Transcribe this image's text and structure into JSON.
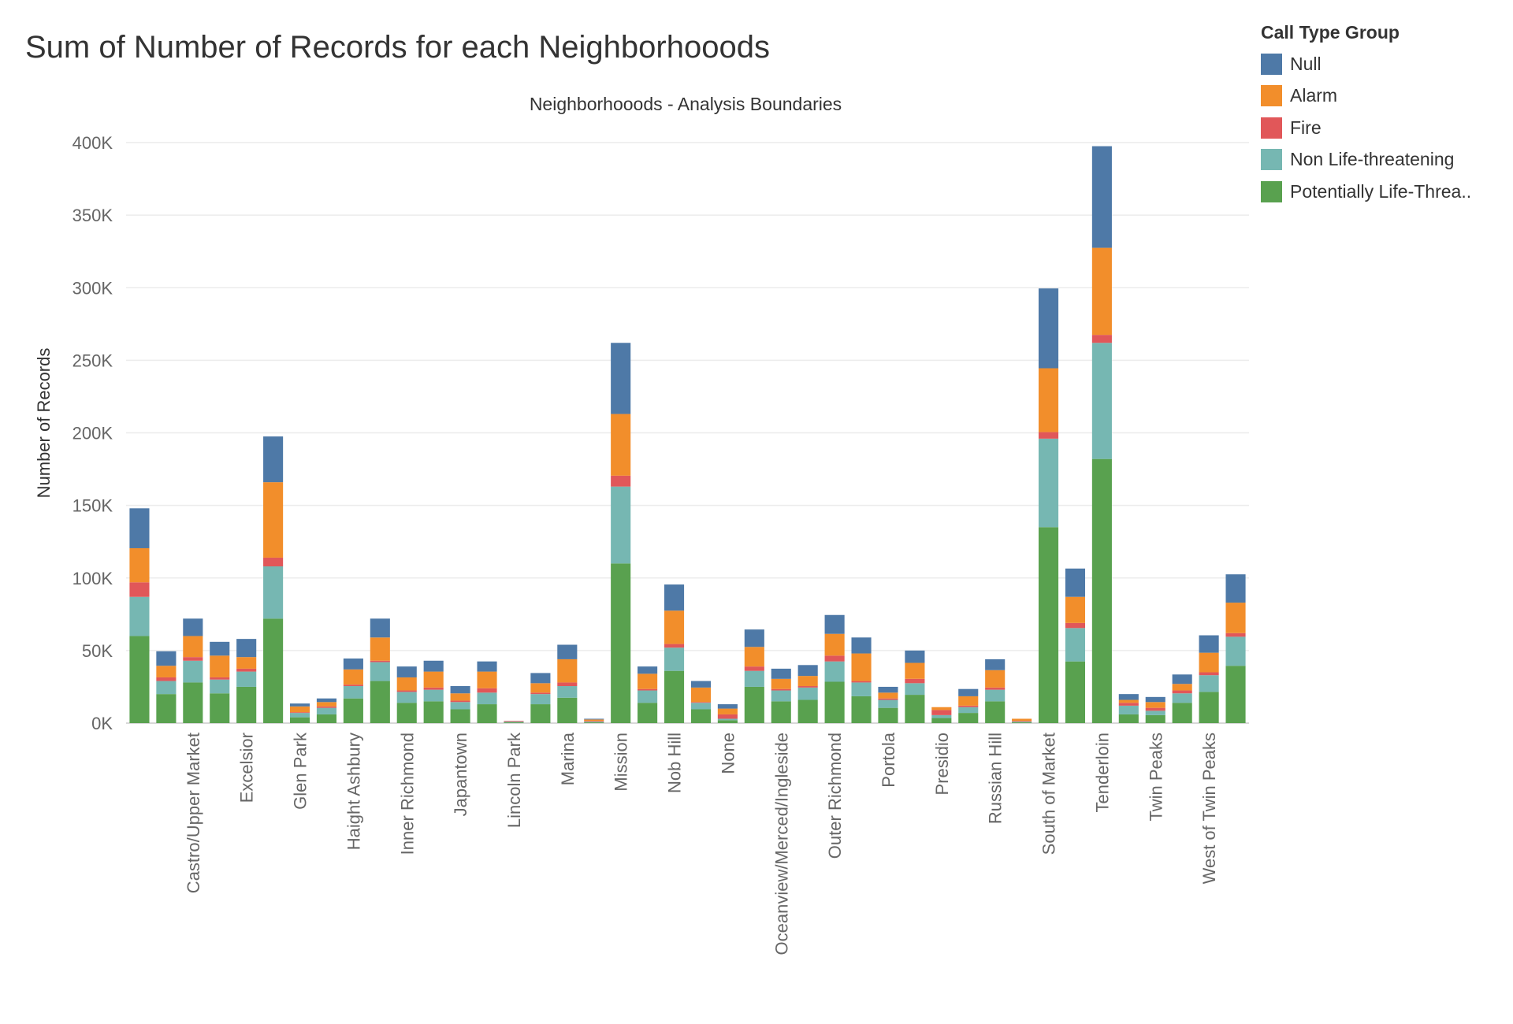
{
  "title": "Sum of Number of Records for each Neighborhooods",
  "legend": {
    "title": "Call Type Group",
    "items": [
      {
        "label": "Null",
        "color": "#4e79a7"
      },
      {
        "label": "Alarm",
        "color": "#f28e2b"
      },
      {
        "label": "Fire",
        "color": "#e15759"
      },
      {
        "label": "Non Life-threatening",
        "color": "#76b7b2"
      },
      {
        "label": "Potentially Life-Threa..",
        "color": "#59a14f"
      }
    ]
  },
  "chart_data": {
    "type": "bar",
    "stacked": true,
    "title": "Neighborhooods - Analysis Boundaries",
    "ylabel": "Number of Records",
    "ylim": [
      0,
      400000
    ],
    "yticks": [
      0,
      50000,
      100000,
      150000,
      200000,
      250000,
      300000,
      350000,
      400000
    ],
    "ytick_labels": [
      "0K",
      "50K",
      "100K",
      "150K",
      "200K",
      "250K",
      "300K",
      "350K",
      "400K"
    ],
    "grid": true,
    "legend_position": "top-right",
    "categories": [
      "",
      "",
      "Castro/Upper Market",
      "",
      "Excelsior",
      "",
      "Glen Park",
      "",
      "Haight Ashbury",
      "",
      "Inner Richmond",
      "",
      "Japantown",
      "",
      "Lincoln Park",
      "",
      "Marina",
      "",
      "Mission",
      "",
      "Nob Hill",
      "",
      "None",
      "",
      "Oceanview/Merced/Ingleside",
      "",
      "Outer Richmond",
      "",
      "Portola",
      "",
      "Presidio",
      "",
      "Russian Hill",
      "",
      "South of Market",
      "",
      "Tenderloin",
      "",
      "Twin Peaks",
      "",
      "West of Twin Peaks",
      ""
    ],
    "series": [
      {
        "name": "Potentially Life-Threa..",
        "color": "#59a14f",
        "values": [
          60000,
          20000,
          28000,
          20500,
          25000,
          72000,
          4000,
          6000,
          17000,
          29000,
          14000,
          15000,
          9500,
          13000,
          500,
          13000,
          17500,
          500,
          110000,
          14000,
          36000,
          9500,
          2000,
          25000,
          15000,
          16000,
          28500,
          18500,
          10500,
          19500,
          3500,
          7000,
          15000,
          500,
          135000,
          42500,
          182000,
          6000,
          5500,
          14000,
          21500,
          39500
        ]
      },
      {
        "name": "Non Life-threatening",
        "color": "#76b7b2",
        "values": [
          27000,
          9000,
          15000,
          9500,
          10500,
          36000,
          3000,
          4500,
          8500,
          13000,
          7500,
          8000,
          5000,
          8000,
          500,
          7000,
          8000,
          500,
          53000,
          8500,
          16000,
          4500,
          1000,
          11000,
          7500,
          8500,
          14000,
          9500,
          5500,
          8000,
          2000,
          4000,
          8000,
          500,
          61000,
          23000,
          80000,
          6000,
          3000,
          6500,
          11500,
          20000
        ]
      },
      {
        "name": "Fire",
        "color": "#e15759",
        "values": [
          10000,
          2500,
          2500,
          1500,
          2000,
          6000,
          500,
          1000,
          1000,
          1000,
          1000,
          1500,
          1000,
          3000,
          500,
          1000,
          2500,
          500,
          7500,
          1000,
          2500,
          500,
          3000,
          3000,
          1000,
          1000,
          4000,
          1000,
          1000,
          3000,
          3500,
          1000,
          1500,
          500,
          4500,
          3500,
          5500,
          2000,
          2000,
          2000,
          2000,
          2500
        ]
      },
      {
        "name": "Alarm",
        "color": "#f28e2b",
        "values": [
          23500,
          8000,
          14500,
          15000,
          8000,
          52000,
          4000,
          3000,
          10500,
          16000,
          9000,
          11000,
          5000,
          11500,
          0,
          6500,
          16000,
          1000,
          42500,
          10500,
          23000,
          10000,
          4000,
          13500,
          7000,
          7000,
          15000,
          19000,
          4000,
          11000,
          2000,
          6500,
          12000,
          1500,
          44000,
          18000,
          60000,
          2000,
          4000,
          4500,
          13500,
          21000
        ]
      },
      {
        "name": "Null",
        "color": "#4e79a7",
        "values": [
          27500,
          10000,
          12000,
          9500,
          12500,
          31500,
          2000,
          2500,
          7500,
          13000,
          7500,
          7500,
          5000,
          7000,
          0,
          7000,
          10000,
          500,
          49000,
          5000,
          18000,
          4500,
          3000,
          12000,
          7000,
          7500,
          13000,
          11000,
          4000,
          8500,
          0,
          5000,
          7500,
          0,
          55000,
          19500,
          70000,
          4000,
          3500,
          6500,
          12000,
          19500
        ]
      }
    ]
  }
}
